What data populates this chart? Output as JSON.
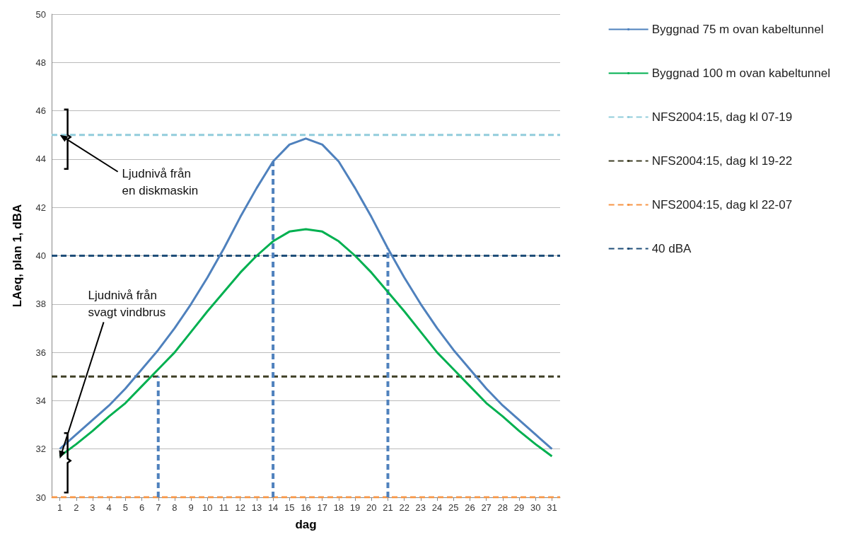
{
  "chart_data": {
    "type": "line",
    "xlabel": "dag",
    "ylabel": "LAeq, plan 1, dBA",
    "x": [
      1,
      2,
      3,
      4,
      5,
      6,
      7,
      8,
      9,
      10,
      11,
      12,
      13,
      14,
      15,
      16,
      17,
      18,
      19,
      20,
      21,
      22,
      23,
      24,
      25,
      26,
      27,
      28,
      29,
      30,
      31
    ],
    "xlim": [
      0.5,
      31.5
    ],
    "xticks": [
      1,
      2,
      3,
      4,
      5,
      6,
      7,
      8,
      9,
      10,
      11,
      12,
      13,
      14,
      15,
      16,
      17,
      18,
      19,
      20,
      21,
      22,
      23,
      24,
      25,
      26,
      27,
      28,
      29,
      30,
      31
    ],
    "ylim": [
      30,
      50
    ],
    "yticks": [
      30,
      32,
      34,
      36,
      38,
      40,
      42,
      44,
      46,
      48,
      50
    ],
    "grid": "y",
    "legend": "right",
    "marker": "none",
    "line_style": "solid",
    "series": [
      {
        "name": "Byggnad 75 m ovan kabeltunnel",
        "color": "#4f81bd",
        "values": [
          32.0,
          32.6,
          33.2,
          33.8,
          34.5,
          35.3,
          36.1,
          37.0,
          38.0,
          39.1,
          40.3,
          41.6,
          42.8,
          43.9,
          44.6,
          44.85,
          44.6,
          43.9,
          42.8,
          41.6,
          40.3,
          39.1,
          38.0,
          37.0,
          36.1,
          35.3,
          34.5,
          33.8,
          33.2,
          32.6,
          32.0
        ]
      },
      {
        "name": "Byggnad 100 m ovan kabeltunnel",
        "color": "#00b050",
        "values": [
          31.7,
          32.2,
          32.75,
          33.35,
          33.9,
          34.6,
          35.3,
          36.0,
          36.85,
          37.7,
          38.5,
          39.3,
          40.0,
          40.6,
          41.0,
          41.1,
          41.0,
          40.6,
          40.0,
          39.3,
          38.5,
          37.7,
          36.85,
          36.0,
          35.3,
          34.6,
          33.9,
          33.35,
          32.75,
          32.2,
          31.7
        ]
      },
      {
        "color": "#4f81bd",
        "line_style": "dashed",
        "x": [
          7,
          7
        ],
        "values": [
          30,
          35
        ]
      },
      {
        "color": "#4f81bd",
        "line_style": "dashed",
        "x": [
          14,
          14
        ],
        "values": [
          30,
          43.9
        ]
      },
      {
        "color": "#4f81bd",
        "line_style": "dashed",
        "x": [
          21,
          21
        ],
        "values": [
          30,
          40.3
        ]
      },
      {
        "name": "NFS2004:15, dag kl 07-19",
        "color": "#92cddc",
        "line_style": "dashed",
        "x": [
          0.5,
          31.5
        ],
        "values": [
          45,
          45
        ]
      },
      {
        "name": "NFS2004:15, dag kl 19-22",
        "color": "#3f3f26",
        "line_style": "dashed",
        "x": [
          0.5,
          31.5
        ],
        "values": [
          35,
          35
        ]
      },
      {
        "name": "NFS2004:15, dag kl 22-07",
        "color": "#f79646",
        "line_style": "dashed",
        "x": [
          0.5,
          31.5
        ],
        "values": [
          30,
          30
        ]
      },
      {
        "name": "40 dBA",
        "color": "#1f4e79",
        "line_style": "dashed",
        "x": [
          0.5,
          31.5
        ],
        "values": [
          40,
          40
        ]
      }
    ],
    "annotations": [
      {
        "text": "Ljudnivå från\nen diskmaskin",
        "x": 1,
        "y": 45
      },
      {
        "text": "Ljudnivå från\nsvagt vindbrus",
        "x": 1,
        "y": 31.6
      }
    ]
  }
}
